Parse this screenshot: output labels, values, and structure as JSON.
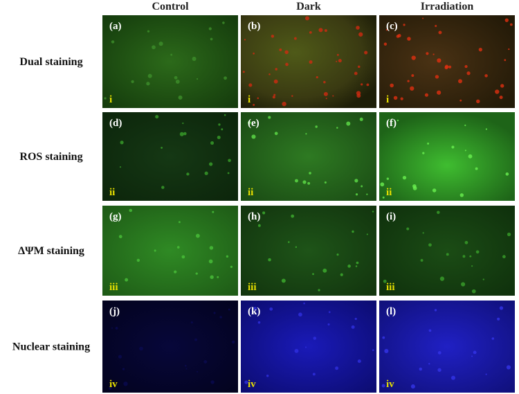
{
  "columns": [
    "Control",
    "Dark",
    "Irradiation"
  ],
  "rows": [
    {
      "label": "Dual staining",
      "panels": [
        {
          "letter": "(a)",
          "numeral": "i"
        },
        {
          "letter": "(b)",
          "numeral": "i"
        },
        {
          "letter": "(c)",
          "numeral": "i"
        }
      ]
    },
    {
      "label": "ROS staining",
      "panels": [
        {
          "letter": "(d)",
          "numeral": "ii"
        },
        {
          "letter": "(e)",
          "numeral": "ii"
        },
        {
          "letter": "(f)",
          "numeral": "ii"
        }
      ]
    },
    {
      "label": "ΔΨM staining",
      "panels": [
        {
          "letter": "(g)",
          "numeral": "iii"
        },
        {
          "letter": "(h)",
          "numeral": "iii"
        },
        {
          "letter": "(i)",
          "numeral": "iii"
        }
      ]
    },
    {
      "label": "Nuclear staining",
      "panels": [
        {
          "letter": "(j)",
          "numeral": "iv"
        },
        {
          "letter": "(k)",
          "numeral": "iv"
        },
        {
          "letter": "(l)",
          "numeral": "iv"
        }
      ]
    }
  ]
}
